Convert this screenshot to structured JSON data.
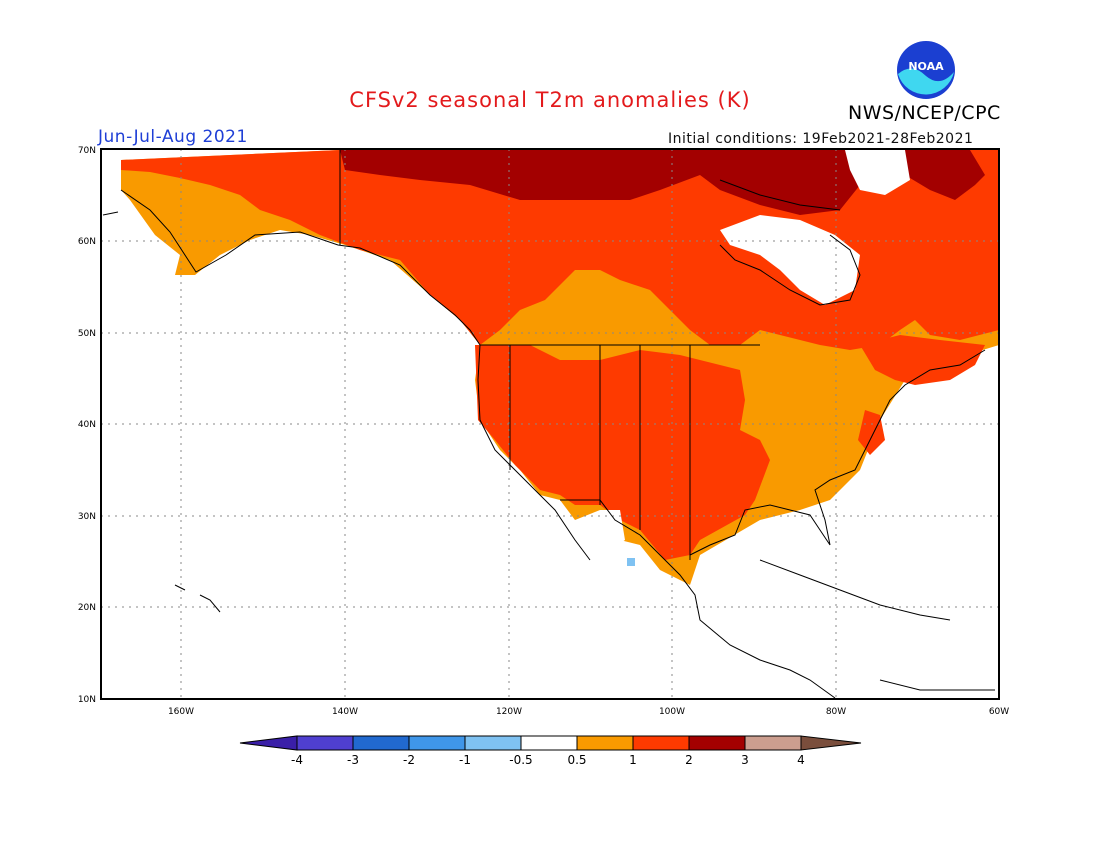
{
  "header": {
    "title": "CFSv2 seasonal T2m anomalies (K)",
    "period": "Jun-Jul-Aug 2021",
    "initial_conditions": "Initial conditions: 19Feb2021-28Feb2021",
    "org": "NWS/NCEP/CPC",
    "logo_text": "NOAA"
  },
  "axes": {
    "lat_labels": [
      "70N",
      "60N",
      "50N",
      "40N",
      "30N",
      "20N",
      "10N"
    ],
    "lon_labels": [
      "160W",
      "140W",
      "120W",
      "100W",
      "80W",
      "60W"
    ]
  },
  "colorbar": {
    "labels": [
      "-4",
      "-3",
      "-2",
      "-1",
      "-0.5",
      "0.5",
      "1",
      "2",
      "3",
      "4"
    ],
    "colors": [
      "#3a1fa8",
      "#4f3fd0",
      "#2169cf",
      "#3f96e9",
      "#7fc2f2",
      "#ffffff",
      "#f99a00",
      "#fe3a00",
      "#a30000",
      "#cc9e8f",
      "#7a4e3c"
    ]
  },
  "legend_colors": {
    "anom_0_5_1": "#f99a00",
    "anom_1_2": "#fe3a00",
    "anom_2_3": "#a30000",
    "anom_neg_1_0_5": "#7fc2f2"
  }
}
